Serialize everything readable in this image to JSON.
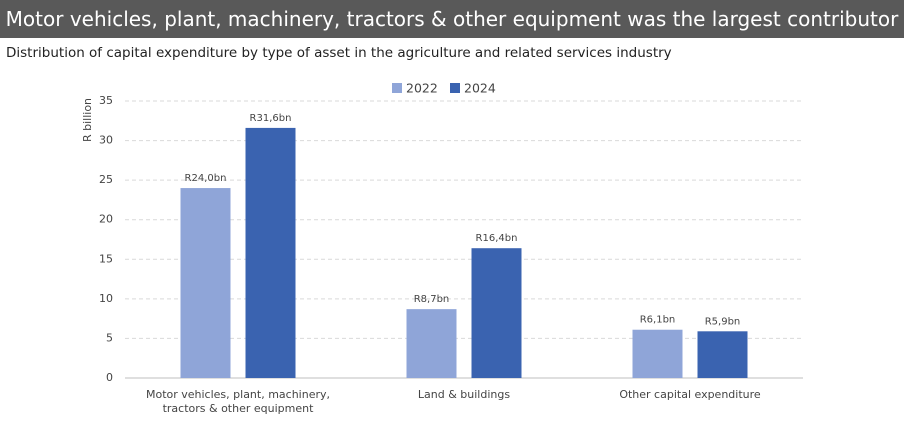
{
  "chart_data": {
    "type": "bar",
    "title": "Motor vehicles, plant, machinery, tractors & other equipment was the largest contributor",
    "subtitle": "Distribution of capital expenditure by type of asset in the agriculture and related services industry",
    "y_label": "R billion",
    "categories": [
      "Motor vehicles, plant, machinery, tractors & other equipment",
      "Land & buildings",
      "Other capital expenditure"
    ],
    "series": [
      {
        "name": "2022",
        "color": "#8fa5d8",
        "values": [
          24.0,
          8.7,
          6.1
        ],
        "value_labels": [
          "R24,0bn",
          "R8,7bn",
          "R6,1bn"
        ]
      },
      {
        "name": "2024",
        "color": "#3a63b0",
        "values": [
          31.6,
          16.4,
          5.9
        ],
        "value_labels": [
          "R31,6bn",
          "R16,4bn",
          "R5,9bn"
        ]
      }
    ],
    "ylim": [
      0,
      35
    ],
    "yticks": [
      0,
      5,
      10,
      15,
      20,
      25,
      30,
      35
    ],
    "grid": true,
    "legend": "top"
  }
}
